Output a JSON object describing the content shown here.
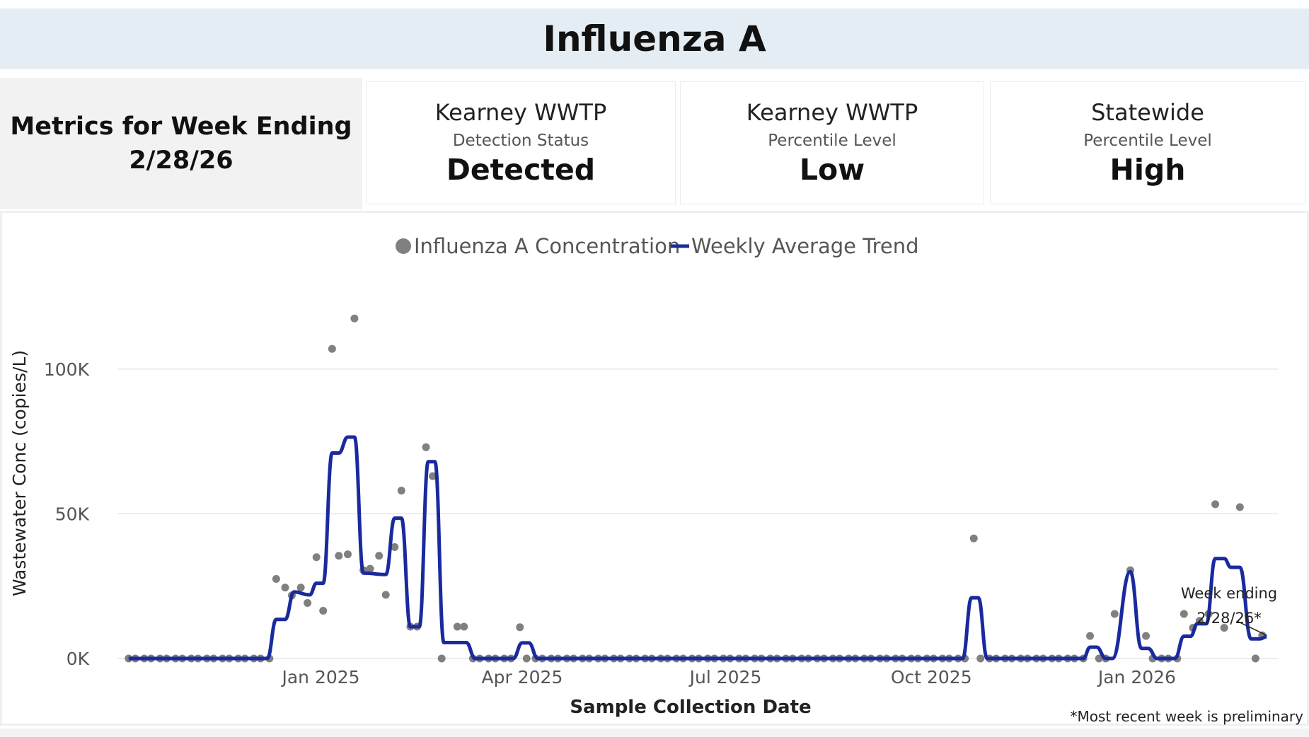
{
  "page_title": "Influenza A",
  "metrics": {
    "label_line1": "Metrics for Week Ending",
    "label_line2": "2/28/26",
    "cards": [
      {
        "site": "Kearney WWTP",
        "metric": "Detection Status",
        "value": "Detected"
      },
      {
        "site": "Kearney WWTP",
        "metric": "Percentile Level",
        "value": "Low"
      },
      {
        "site": "Statewide",
        "metric": "Percentile Level",
        "value": "High"
      }
    ]
  },
  "colors": {
    "dots": "#808080",
    "line": "#1a2a9e",
    "gridline": "#e6e6e6",
    "title_bg": "#e5edf4"
  },
  "footnote": "*Most recent week is preliminary",
  "chart_data": {
    "type": "scatter+line",
    "legend": [
      {
        "name": "Influenza A Concentration",
        "marker": "dot"
      },
      {
        "name": "Weekly Average Trend",
        "marker": "line"
      }
    ],
    "xlabel": "Sample Collection Date",
    "ylabel": "Wastewater Conc (copies/L)",
    "ylim": [
      0,
      120000
    ],
    "yticks": [
      0,
      50000,
      100000
    ],
    "ytick_labels": [
      "0K",
      "50K",
      "100K"
    ],
    "xlim": [
      "2024-10-02",
      "2026-03-05"
    ],
    "xticks": [
      "2025-01-01",
      "2025-04-01",
      "2025-07-01",
      "2025-10-01",
      "2026-01-01"
    ],
    "xtick_labels": [
      "Jan 2025",
      "Apr 2025",
      "Jul 2025",
      "Oct 2025",
      "Jan 2026"
    ],
    "annotation": {
      "text_line1": "Week ending",
      "text_line2": "2/28/26*",
      "date": "2026-02-28",
      "value": 8000
    },
    "concentration_points": [
      [
        "2024-10-07",
        0
      ],
      [
        "2024-10-10",
        0
      ],
      [
        "2024-10-14",
        0
      ],
      [
        "2024-10-17",
        0
      ],
      [
        "2024-10-21",
        0
      ],
      [
        "2024-10-24",
        0
      ],
      [
        "2024-10-28",
        0
      ],
      [
        "2024-10-31",
        0
      ],
      [
        "2024-11-04",
        0
      ],
      [
        "2024-11-07",
        0
      ],
      [
        "2024-11-11",
        0
      ],
      [
        "2024-11-14",
        0
      ],
      [
        "2024-11-18",
        0
      ],
      [
        "2024-11-21",
        0
      ],
      [
        "2024-11-25",
        0
      ],
      [
        "2024-11-28",
        0
      ],
      [
        "2024-12-02",
        0
      ],
      [
        "2024-12-05",
        0
      ],
      [
        "2024-12-09",
        0
      ],
      [
        "2024-12-12",
        27500
      ],
      [
        "2024-12-16",
        24500
      ],
      [
        "2024-12-19",
        21800
      ],
      [
        "2024-12-23",
        24500
      ],
      [
        "2024-12-26",
        19200
      ],
      [
        "2024-12-30",
        35000
      ],
      [
        "2025-01-02",
        16500
      ],
      [
        "2025-01-06",
        107000
      ],
      [
        "2025-01-09",
        35500
      ],
      [
        "2025-01-13",
        36000
      ],
      [
        "2025-01-16",
        117500
      ],
      [
        "2025-01-20",
        30500
      ],
      [
        "2025-01-23",
        31000
      ],
      [
        "2025-01-27",
        35500
      ],
      [
        "2025-01-30",
        22000
      ],
      [
        "2025-02-03",
        38500
      ],
      [
        "2025-02-06",
        58000
      ],
      [
        "2025-02-10",
        11000
      ],
      [
        "2025-02-13",
        11000
      ],
      [
        "2025-02-17",
        73000
      ],
      [
        "2025-02-20",
        63000
      ],
      [
        "2025-02-24",
        0
      ],
      [
        "2025-03-03",
        11000
      ],
      [
        "2025-03-06",
        11000
      ],
      [
        "2025-03-10",
        0
      ],
      [
        "2025-03-13",
        0
      ],
      [
        "2025-03-17",
        0
      ],
      [
        "2025-03-20",
        0
      ],
      [
        "2025-03-24",
        0
      ],
      [
        "2025-03-27",
        0
      ],
      [
        "2025-03-31",
        10800
      ],
      [
        "2025-04-03",
        0
      ],
      [
        "2025-04-07",
        0
      ],
      [
        "2025-04-10",
        0
      ],
      [
        "2025-04-14",
        0
      ],
      [
        "2025-04-17",
        0
      ],
      [
        "2025-04-21",
        0
      ],
      [
        "2025-04-24",
        0
      ],
      [
        "2025-04-28",
        0
      ],
      [
        "2025-05-01",
        0
      ],
      [
        "2025-05-05",
        0
      ],
      [
        "2025-05-08",
        0
      ],
      [
        "2025-05-12",
        0
      ],
      [
        "2025-05-15",
        0
      ],
      [
        "2025-05-19",
        0
      ],
      [
        "2025-05-22",
        0
      ],
      [
        "2025-05-26",
        0
      ],
      [
        "2025-05-29",
        0
      ],
      [
        "2025-06-02",
        0
      ],
      [
        "2025-06-05",
        0
      ],
      [
        "2025-06-09",
        0
      ],
      [
        "2025-06-12",
        0
      ],
      [
        "2025-06-16",
        0
      ],
      [
        "2025-06-19",
        0
      ],
      [
        "2025-06-23",
        0
      ],
      [
        "2025-06-26",
        0
      ],
      [
        "2025-06-30",
        0
      ],
      [
        "2025-07-03",
        0
      ],
      [
        "2025-07-07",
        0
      ],
      [
        "2025-07-10",
        0
      ],
      [
        "2025-07-14",
        0
      ],
      [
        "2025-07-17",
        0
      ],
      [
        "2025-07-21",
        0
      ],
      [
        "2025-07-24",
        0
      ],
      [
        "2025-07-28",
        0
      ],
      [
        "2025-07-31",
        0
      ],
      [
        "2025-08-04",
        0
      ],
      [
        "2025-08-07",
        0
      ],
      [
        "2025-08-11",
        0
      ],
      [
        "2025-08-14",
        0
      ],
      [
        "2025-08-18",
        0
      ],
      [
        "2025-08-21",
        0
      ],
      [
        "2025-08-25",
        0
      ],
      [
        "2025-08-28",
        0
      ],
      [
        "2025-09-01",
        0
      ],
      [
        "2025-09-04",
        0
      ],
      [
        "2025-09-08",
        0
      ],
      [
        "2025-09-11",
        0
      ],
      [
        "2025-09-15",
        0
      ],
      [
        "2025-09-18",
        0
      ],
      [
        "2025-09-22",
        0
      ],
      [
        "2025-09-25",
        0
      ],
      [
        "2025-09-29",
        0
      ],
      [
        "2025-10-02",
        0
      ],
      [
        "2025-10-06",
        0
      ],
      [
        "2025-10-09",
        0
      ],
      [
        "2025-10-13",
        0
      ],
      [
        "2025-10-16",
        0
      ],
      [
        "2025-10-20",
        41500
      ],
      [
        "2025-10-23",
        0
      ],
      [
        "2025-10-27",
        0
      ],
      [
        "2025-10-30",
        0
      ],
      [
        "2025-11-03",
        0
      ],
      [
        "2025-11-06",
        0
      ],
      [
        "2025-11-10",
        0
      ],
      [
        "2025-11-13",
        0
      ],
      [
        "2025-11-17",
        0
      ],
      [
        "2025-11-20",
        0
      ],
      [
        "2025-11-24",
        0
      ],
      [
        "2025-11-27",
        0
      ],
      [
        "2025-12-01",
        0
      ],
      [
        "2025-12-04",
        0
      ],
      [
        "2025-12-08",
        0
      ],
      [
        "2025-12-11",
        7800
      ],
      [
        "2025-12-15",
        0
      ],
      [
        "2025-12-18",
        0
      ],
      [
        "2025-12-22",
        15400
      ],
      [
        "2025-12-29",
        30500
      ],
      [
        "2026-01-05",
        7800
      ],
      [
        "2026-01-08",
        0
      ],
      [
        "2026-01-12",
        0
      ],
      [
        "2026-01-15",
        0
      ],
      [
        "2026-01-19",
        0
      ],
      [
        "2026-01-22",
        15400
      ],
      [
        "2026-01-26",
        10600
      ],
      [
        "2026-01-29",
        13000
      ],
      [
        "2026-02-02",
        15400
      ],
      [
        "2026-02-05",
        53300
      ],
      [
        "2026-02-09",
        10600
      ],
      [
        "2026-02-16",
        52300
      ],
      [
        "2026-02-23",
        0
      ],
      [
        "2026-02-26",
        8000
      ]
    ],
    "trend_steps": [
      [
        "2024-10-07",
        0
      ],
      [
        "2024-12-08",
        0
      ],
      [
        "2024-12-12",
        13500
      ],
      [
        "2024-12-16",
        13500
      ],
      [
        "2024-12-20",
        23000
      ],
      [
        "2024-12-27",
        22000
      ],
      [
        "2024-12-30",
        26000
      ],
      [
        "2025-01-02",
        26000
      ],
      [
        "2025-01-06",
        71000
      ],
      [
        "2025-01-09",
        71000
      ],
      [
        "2025-01-13",
        76500
      ],
      [
        "2025-01-16",
        76500
      ],
      [
        "2025-01-20",
        29500
      ],
      [
        "2025-01-30",
        29000
      ],
      [
        "2025-02-03",
        48500
      ],
      [
        "2025-02-06",
        48500
      ],
      [
        "2025-02-10",
        11000
      ],
      [
        "2025-02-14",
        11000
      ],
      [
        "2025-02-18",
        68000
      ],
      [
        "2025-02-21",
        68000
      ],
      [
        "2025-02-25",
        5500
      ],
      [
        "2025-03-07",
        5500
      ],
      [
        "2025-03-11",
        0
      ],
      [
        "2025-03-28",
        0
      ],
      [
        "2025-04-01",
        5400
      ],
      [
        "2025-04-04",
        5400
      ],
      [
        "2025-04-08",
        0
      ],
      [
        "2025-10-15",
        0
      ],
      [
        "2025-10-19",
        21000
      ],
      [
        "2025-10-22",
        21000
      ],
      [
        "2025-10-26",
        0
      ],
      [
        "2025-12-08",
        0
      ],
      [
        "2025-12-11",
        3900
      ],
      [
        "2025-12-14",
        3900
      ],
      [
        "2025-12-18",
        0
      ],
      [
        "2025-12-21",
        0
      ],
      [
        "2025-12-29",
        30000
      ],
      [
        "2026-01-03",
        3500
      ],
      [
        "2026-01-06",
        3500
      ],
      [
        "2026-01-10",
        0
      ],
      [
        "2026-01-18",
        0
      ],
      [
        "2026-01-22",
        7700
      ],
      [
        "2026-01-25",
        7700
      ],
      [
        "2026-01-28",
        12000
      ],
      [
        "2026-02-01",
        12000
      ],
      [
        "2026-02-05",
        34500
      ],
      [
        "2026-02-09",
        34500
      ],
      [
        "2026-02-12",
        31500
      ],
      [
        "2026-02-16",
        31500
      ],
      [
        "2026-02-21",
        6800
      ],
      [
        "2026-02-25",
        6800
      ],
      [
        "2026-02-28",
        7500
      ]
    ]
  }
}
